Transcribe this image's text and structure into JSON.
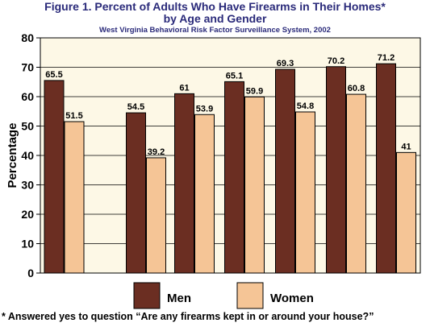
{
  "chart_data": {
    "type": "bar",
    "title": "Figure 1. Percent of Adults Who Have Firearms in Their Homes*",
    "title_line2": "by Age and Gender",
    "subtitle": "West Virginia Behavioral Risk Factor Surveillance System, 2002",
    "ylabel": "Percentage",
    "xlabel": "",
    "ylim": [
      0,
      80
    ],
    "yticks": [
      0,
      10,
      20,
      30,
      40,
      50,
      60,
      70,
      80
    ],
    "grid": true,
    "legend_position": "bottom-center",
    "categories": [
      "",
      "",
      "",
      "",
      "",
      "",
      ""
    ],
    "series": [
      {
        "name": "Men",
        "color": "#6b2e22",
        "values": [
          65.5,
          54.5,
          61,
          65.1,
          69.3,
          70.2,
          71.2
        ],
        "labels": [
          "65.5",
          "54.5",
          "61",
          "65.1",
          "69.3",
          "70.2",
          "71.2"
        ]
      },
      {
        "name": "Women",
        "color": "#f5c596",
        "values": [
          51.5,
          39.2,
          53.9,
          59.9,
          54.8,
          60.8,
          41
        ],
        "labels": [
          "51.5",
          "39.2",
          "53.9",
          "59.9",
          "54.8",
          "60.8",
          "41"
        ]
      }
    ],
    "footnote": "* Answered yes to question “Are any firearms kept in or around your house?”",
    "colors": {
      "plot_background": "#fdf8e6",
      "grid": "#000000",
      "title": "#2a2a7a"
    }
  }
}
